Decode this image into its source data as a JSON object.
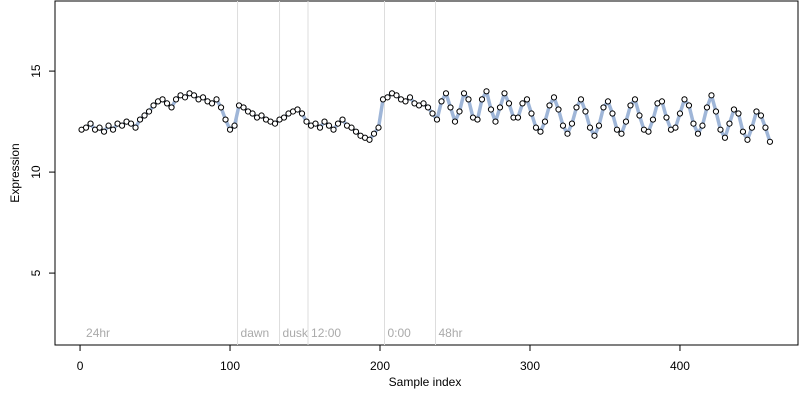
{
  "chart_data": {
    "type": "line",
    "x_label": "Sample index",
    "y_label": "Expression",
    "xlim": [
      -16.7,
      478.7
    ],
    "ylim": [
      1.44,
      18.47
    ],
    "xticks": [
      0,
      100,
      200,
      300,
      400
    ],
    "yticks": [
      5,
      10,
      15
    ],
    "vlines": [
      105,
      133,
      152,
      203,
      237
    ],
    "markers": [
      {
        "x": 2,
        "label": "24hr"
      },
      {
        "x": 105,
        "label": "dawn"
      },
      {
        "x": 133,
        "label": "dusk"
      },
      {
        "x": 152,
        "label": "12:00"
      },
      {
        "x": 203,
        "label": "0:00"
      },
      {
        "x": 237,
        "label": "48hr"
      }
    ],
    "x": [
      1,
      4,
      7,
      10,
      13,
      16,
      19,
      22,
      25,
      28,
      31,
      34,
      37,
      40,
      43,
      46,
      49,
      52,
      55,
      58,
      61,
      64,
      67,
      70,
      73,
      76,
      79,
      82,
      85,
      88,
      91,
      94,
      97,
      100,
      103,
      106,
      109,
      112,
      115,
      118,
      121,
      124,
      127,
      130,
      133,
      136,
      139,
      142,
      145,
      148,
      151,
      154,
      157,
      160,
      163,
      166,
      169,
      172,
      175,
      178,
      181,
      184,
      187,
      190,
      193,
      196,
      199,
      202,
      205,
      208,
      211,
      214,
      217,
      220,
      223,
      226,
      229,
      232,
      235,
      238,
      241,
      244,
      247,
      250,
      253,
      256,
      259,
      262,
      265,
      268,
      271,
      274,
      277,
      280,
      283,
      286,
      289,
      292,
      295,
      298,
      301,
      304,
      307,
      310,
      313,
      316,
      319,
      322,
      325,
      328,
      331,
      334,
      337,
      340,
      343,
      346,
      349,
      352,
      355,
      358,
      361,
      364,
      367,
      370,
      373,
      376,
      379,
      382,
      385,
      388,
      391,
      394,
      397,
      400,
      403,
      406,
      409,
      412,
      415,
      418,
      421,
      424,
      427,
      430,
      433,
      436,
      439,
      442,
      445,
      448,
      451,
      454,
      457,
      460
    ],
    "series": [
      {
        "line_color": "#9fb6d8",
        "marker_fill": "#ffffff",
        "color": "#000000",
        "values": [
          12.1,
          12.2,
          12.4,
          12.1,
          12.2,
          12.0,
          12.3,
          12.1,
          12.4,
          12.3,
          12.5,
          12.4,
          12.2,
          12.6,
          12.8,
          13.0,
          13.3,
          13.5,
          13.6,
          13.4,
          13.2,
          13.6,
          13.8,
          13.7,
          13.9,
          13.8,
          13.6,
          13.7,
          13.5,
          13.4,
          13.6,
          13.2,
          12.6,
          12.1,
          12.3,
          13.3,
          13.2,
          13.0,
          12.9,
          12.7,
          12.8,
          12.6,
          12.5,
          12.4,
          12.6,
          12.7,
          12.9,
          13.0,
          13.1,
          12.9,
          12.5,
          12.3,
          12.4,
          12.2,
          12.5,
          12.3,
          12.1,
          12.4,
          12.6,
          12.3,
          12.2,
          12.0,
          11.8,
          11.7,
          11.6,
          11.9,
          12.2,
          13.6,
          13.7,
          13.9,
          13.8,
          13.6,
          13.5,
          13.7,
          13.4,
          13.3,
          13.4,
          13.2,
          12.9,
          12.6,
          13.5,
          13.9,
          13.2,
          12.5,
          13.0,
          13.9,
          13.6,
          12.7,
          12.6,
          13.6,
          14.0,
          13.1,
          12.5,
          13.2,
          13.9,
          13.4,
          12.7,
          12.7,
          13.4,
          13.6,
          12.9,
          12.2,
          12.0,
          12.5,
          13.3,
          13.7,
          13.1,
          12.3,
          11.9,
          12.4,
          13.2,
          13.6,
          13.0,
          12.2,
          11.8,
          12.3,
          13.2,
          13.5,
          12.9,
          12.1,
          11.9,
          12.5,
          13.3,
          13.6,
          12.8,
          12.1,
          12.0,
          12.6,
          13.4,
          13.5,
          12.7,
          12.1,
          12.2,
          12.9,
          13.6,
          13.3,
          12.4,
          11.9,
          12.3,
          13.2,
          13.8,
          13.0,
          12.1,
          11.7,
          12.4,
          13.1,
          12.9,
          12.0,
          11.6,
          12.2,
          13.0,
          12.8,
          12.2,
          11.5
        ]
      }
    ]
  }
}
